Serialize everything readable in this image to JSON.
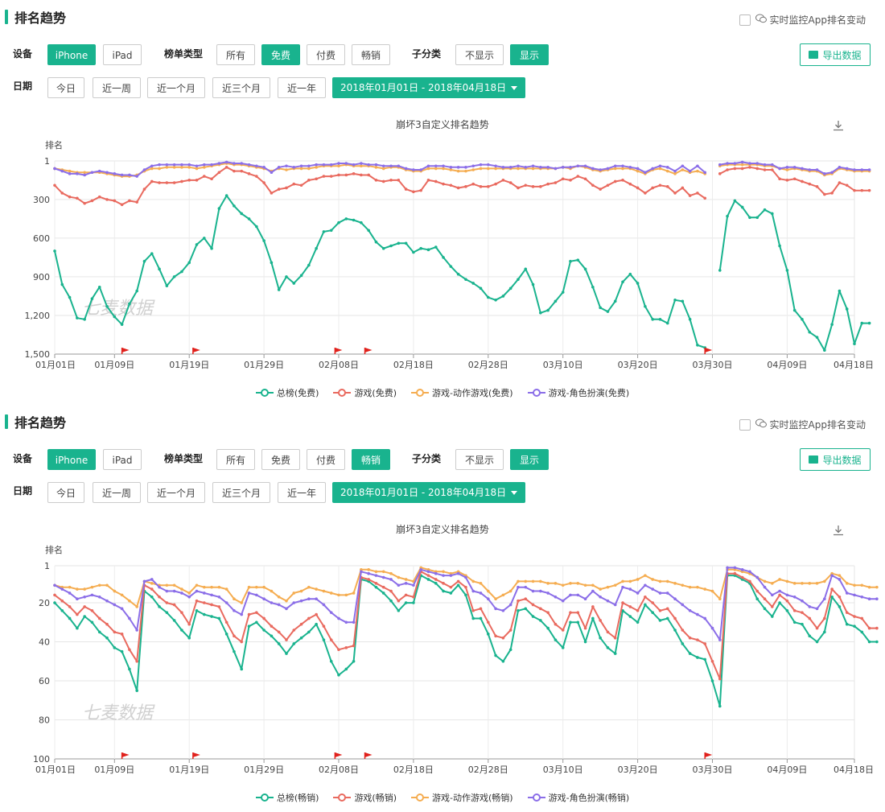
{
  "ui": {
    "section_title": "排名趋势",
    "monitor_label": "实时监控App排名变动",
    "device_label": "设备",
    "devices": [
      "iPhone",
      "iPad"
    ],
    "list_type_label": "榜单类型",
    "list_types": [
      "所有",
      "免费",
      "付费",
      "畅销"
    ],
    "subcat_label": "子分类",
    "subcat_options": [
      "不显示",
      "显示"
    ],
    "export_label": "导出数据",
    "date_label": "日期",
    "date_presets": [
      "今日",
      "近一周",
      "近一个月",
      "近三个月",
      "近一年"
    ],
    "date_range": "2018年01月01日 - 2018年04月18日",
    "watermark": "七麦数据"
  },
  "panels": [
    {
      "active_device": "iPhone",
      "active_list_type": "免费",
      "active_subcat": "显示"
    },
    {
      "active_device": "iPhone",
      "active_list_type": "畅销",
      "active_subcat": "显示"
    }
  ],
  "colors": {
    "accent": "#19b38e",
    "total": "#19b38e",
    "game": "#e96a5f",
    "action": "#f5ad51",
    "rpg": "#8b6ee8",
    "flag": "#e0211c"
  },
  "chart_data": [
    {
      "type": "line",
      "title": "崩坏3自定义排名趋势",
      "ylabel": "排名",
      "y_inverted": true,
      "ylim": [
        1,
        1500
      ],
      "yticks": [
        1,
        300,
        600,
        900,
        1200,
        1500
      ],
      "ytick_labels": [
        "1",
        "300",
        "600",
        "900",
        "1,200",
        "1,500"
      ],
      "x_tick_labels": [
        "01月01日",
        "01月09日",
        "01月19日",
        "01月29日",
        "02月08日",
        "02月18日",
        "02月28日",
        "03月10日",
        "03月20日",
        "03月30日",
        "04月09日",
        "04月18日"
      ],
      "x_tick_days": [
        0,
        8,
        18,
        28,
        38,
        48,
        58,
        68,
        78,
        88,
        98,
        107
      ],
      "flag_days": [
        9,
        18.5,
        37.5,
        41.5,
        87
      ],
      "series": [
        {
          "name": "总榜(免费)",
          "color": "#19b38e",
          "values": [
            700,
            960,
            1060,
            1220,
            1230,
            1070,
            980,
            1130,
            1210,
            1270,
            1110,
            1010,
            780,
            720,
            840,
            970,
            900,
            860,
            790,
            650,
            600,
            680,
            370,
            270,
            350,
            410,
            450,
            510,
            620,
            790,
            1000,
            900,
            950,
            890,
            810,
            680,
            550,
            540,
            480,
            450,
            460,
            480,
            540,
            630,
            680,
            660,
            640,
            640,
            710,
            680,
            690,
            670,
            750,
            820,
            880,
            920,
            950,
            990,
            1060,
            1080,
            1050,
            990,
            920,
            840,
            960,
            1180,
            1160,
            1090,
            1020,
            780,
            770,
            840,
            980,
            1140,
            1170,
            1090,
            940,
            880,
            950,
            1130,
            1230,
            1230,
            1260,
            1080,
            1090,
            1230,
            1430,
            1450,
            null,
            850,
            430,
            310,
            360,
            440,
            440,
            380,
            410,
            660,
            850,
            1160,
            1230,
            1330,
            1370,
            1470,
            1270,
            1010,
            1150,
            1420,
            1260,
            1260
          ]
        },
        {
          "name": "游戏(免费)",
          "color": "#e96a5f",
          "values": [
            190,
            250,
            280,
            290,
            330,
            310,
            280,
            300,
            310,
            340,
            310,
            320,
            220,
            160,
            170,
            170,
            170,
            160,
            150,
            150,
            120,
            140,
            90,
            50,
            80,
            80,
            100,
            120,
            170,
            250,
            220,
            210,
            180,
            190,
            150,
            140,
            120,
            120,
            110,
            110,
            100,
            110,
            110,
            150,
            160,
            150,
            150,
            220,
            240,
            230,
            150,
            160,
            180,
            190,
            210,
            200,
            180,
            200,
            200,
            180,
            150,
            170,
            210,
            190,
            200,
            200,
            180,
            170,
            140,
            150,
            120,
            140,
            190,
            220,
            190,
            160,
            150,
            180,
            210,
            250,
            210,
            190,
            200,
            250,
            210,
            270,
            250,
            290,
            null,
            100,
            70,
            60,
            60,
            50,
            60,
            70,
            70,
            140,
            150,
            140,
            160,
            180,
            200,
            260,
            250,
            170,
            190,
            230,
            230,
            230
          ]
        },
        {
          "name": "游戏-动作游戏(免费)",
          "color": "#f5ad51",
          "values": [
            60,
            70,
            80,
            90,
            90,
            90,
            90,
            100,
            110,
            120,
            120,
            110,
            80,
            60,
            60,
            50,
            50,
            50,
            50,
            60,
            50,
            40,
            30,
            20,
            30,
            30,
            40,
            50,
            60,
            80,
            60,
            70,
            60,
            60,
            60,
            50,
            40,
            40,
            40,
            30,
            40,
            40,
            40,
            50,
            60,
            50,
            50,
            70,
            80,
            80,
            60,
            60,
            60,
            70,
            80,
            80,
            70,
            60,
            60,
            60,
            60,
            60,
            60,
            60,
            60,
            60,
            60,
            60,
            50,
            60,
            40,
            50,
            70,
            80,
            70,
            60,
            60,
            60,
            80,
            100,
            70,
            60,
            80,
            100,
            70,
            90,
            80,
            100,
            null,
            40,
            30,
            30,
            30,
            30,
            30,
            40,
            40,
            60,
            70,
            60,
            70,
            80,
            80,
            110,
            100,
            60,
            70,
            80,
            80,
            80
          ]
        },
        {
          "name": "游戏-角色扮演(免费)",
          "color": "#8b6ee8",
          "values": [
            60,
            80,
            100,
            100,
            110,
            90,
            80,
            90,
            100,
            110,
            110,
            120,
            70,
            40,
            30,
            30,
            30,
            30,
            30,
            40,
            30,
            30,
            20,
            10,
            20,
            20,
            30,
            40,
            50,
            90,
            50,
            40,
            50,
            40,
            40,
            30,
            30,
            30,
            20,
            20,
            30,
            20,
            30,
            30,
            40,
            40,
            40,
            60,
            70,
            70,
            40,
            40,
            40,
            50,
            50,
            50,
            40,
            30,
            30,
            40,
            50,
            50,
            40,
            50,
            40,
            50,
            50,
            60,
            50,
            50,
            40,
            40,
            60,
            70,
            60,
            40,
            40,
            50,
            60,
            90,
            60,
            40,
            50,
            80,
            40,
            80,
            40,
            90,
            null,
            30,
            20,
            20,
            10,
            20,
            20,
            30,
            30,
            60,
            50,
            50,
            60,
            70,
            70,
            100,
            90,
            50,
            60,
            70,
            70,
            70
          ]
        }
      ]
    },
    {
      "type": "line",
      "title": "崩坏3自定义排名趋势",
      "ylabel": "排名",
      "y_inverted": true,
      "ylim": [
        1,
        100
      ],
      "yticks": [
        1,
        20,
        40,
        60,
        80,
        100
      ],
      "ytick_labels": [
        "1",
        "20",
        "40",
        "60",
        "80",
        "100"
      ],
      "x_tick_labels": [
        "01月01日",
        "01月09日",
        "01月19日",
        "01月29日",
        "02月08日",
        "02月18日",
        "02月28日",
        "03月10日",
        "03月20日",
        "03月30日",
        "04月09日",
        "04月18日"
      ],
      "x_tick_days": [
        0,
        8,
        18,
        28,
        38,
        48,
        58,
        68,
        78,
        88,
        98,
        107
      ],
      "flag_days": [
        9,
        18.5,
        37.5,
        41.5,
        87
      ],
      "series": [
        {
          "name": "总榜(畅销)",
          "color": "#19b38e",
          "values": [
            20,
            24,
            28,
            33,
            27,
            30,
            35,
            38,
            43,
            45,
            54,
            65,
            14,
            17,
            22,
            25,
            29,
            34,
            38,
            24,
            26,
            27,
            28,
            36,
            45,
            54,
            32,
            30,
            34,
            37,
            41,
            46,
            41,
            38,
            35,
            31,
            39,
            50,
            57,
            54,
            50,
            8,
            9,
            12,
            15,
            19,
            24,
            20,
            20,
            6,
            8,
            10,
            14,
            15,
            11,
            16,
            28,
            28,
            36,
            47,
            50,
            44,
            24,
            23,
            27,
            29,
            33,
            39,
            43,
            30,
            30,
            40,
            28,
            38,
            43,
            46,
            24,
            27,
            30,
            21,
            25,
            29,
            28,
            34,
            41,
            46,
            48,
            49,
            60,
            73,
            6,
            6,
            8,
            10,
            18,
            23,
            27,
            20,
            24,
            30,
            31,
            37,
            40,
            35,
            17,
            22,
            31,
            32,
            35,
            40,
            40
          ]
        },
        {
          "name": "游戏(畅销)",
          "color": "#e96a5f",
          "values": [
            16,
            19,
            22,
            26,
            22,
            24,
            28,
            31,
            35,
            36,
            44,
            50,
            11,
            13,
            17,
            20,
            21,
            25,
            31,
            19,
            20,
            21,
            22,
            30,
            37,
            40,
            26,
            25,
            28,
            32,
            35,
            39,
            34,
            31,
            28,
            26,
            32,
            39,
            44,
            43,
            42,
            7,
            8,
            10,
            12,
            14,
            19,
            16,
            17,
            4,
            6,
            8,
            10,
            12,
            9,
            12,
            24,
            23,
            30,
            37,
            38,
            34,
            19,
            18,
            21,
            23,
            25,
            31,
            34,
            25,
            25,
            33,
            22,
            29,
            35,
            38,
            20,
            22,
            24,
            17,
            20,
            24,
            23,
            28,
            34,
            38,
            39,
            41,
            50,
            59,
            5,
            5,
            7,
            9,
            14,
            18,
            22,
            16,
            19,
            24,
            25,
            28,
            33,
            28,
            13,
            17,
            25,
            27,
            28,
            33,
            33
          ]
        },
        {
          "name": "游戏-动作游戏(畅销)",
          "color": "#f5ad51",
          "values": [
            11,
            12,
            12,
            13,
            13,
            12,
            11,
            11,
            14,
            16,
            19,
            22,
            9,
            10,
            11,
            11,
            11,
            13,
            15,
            11,
            12,
            12,
            12,
            13,
            18,
            20,
            12,
            12,
            12,
            14,
            17,
            19,
            15,
            14,
            12,
            13,
            14,
            15,
            16,
            16,
            15,
            3,
            3,
            4,
            4,
            5,
            7,
            8,
            9,
            2,
            3,
            4,
            4,
            5,
            4,
            6,
            9,
            10,
            14,
            18,
            16,
            14,
            9,
            9,
            9,
            9,
            10,
            10,
            11,
            10,
            10,
            11,
            11,
            13,
            12,
            11,
            9,
            9,
            8,
            6,
            8,
            9,
            9,
            10,
            11,
            12,
            12,
            13,
            14,
            18,
            3,
            3,
            4,
            5,
            7,
            9,
            10,
            8,
            9,
            10,
            10,
            10,
            10,
            9,
            5,
            6,
            10,
            11,
            11,
            12,
            12
          ]
        },
        {
          "name": "游戏-角色扮演(畅销)",
          "color": "#8b6ee8",
          "values": [
            11,
            13,
            15,
            18,
            17,
            16,
            17,
            19,
            21,
            23,
            28,
            34,
            9,
            8,
            12,
            14,
            14,
            15,
            17,
            14,
            15,
            16,
            17,
            20,
            24,
            26,
            15,
            16,
            18,
            20,
            21,
            23,
            20,
            19,
            18,
            18,
            21,
            25,
            28,
            30,
            30,
            4,
            5,
            6,
            7,
            8,
            11,
            10,
            11,
            3,
            4,
            5,
            6,
            6,
            5,
            7,
            14,
            15,
            18,
            23,
            24,
            21,
            12,
            12,
            14,
            14,
            15,
            17,
            19,
            16,
            16,
            18,
            14,
            17,
            19,
            21,
            12,
            13,
            15,
            11,
            13,
            15,
            15,
            18,
            21,
            24,
            26,
            28,
            33,
            39,
            2,
            2,
            3,
            4,
            7,
            12,
            16,
            14,
            16,
            17,
            19,
            22,
            23,
            18,
            6,
            8,
            15,
            16,
            17,
            18,
            18
          ]
        }
      ]
    }
  ]
}
